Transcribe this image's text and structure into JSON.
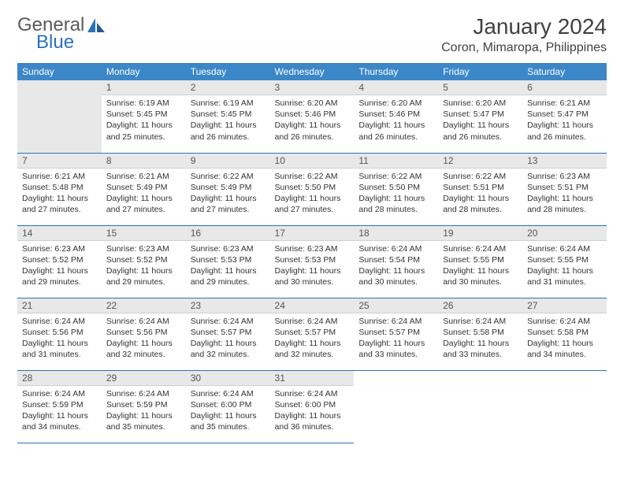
{
  "logo": {
    "text1": "General",
    "text2": "Blue",
    "color1": "#5a5a5a",
    "color2": "#2a71b8"
  },
  "title": "January 2024",
  "location": "Coron, Mimaropa, Philippines",
  "colors": {
    "header_bg": "#3b87c8",
    "header_fg": "#ffffff",
    "daynum_bg": "#e8e8e8",
    "border": "#2a71b8",
    "text": "#333333"
  },
  "weekdays": [
    "Sunday",
    "Monday",
    "Tuesday",
    "Wednesday",
    "Thursday",
    "Friday",
    "Saturday"
  ],
  "start_offset": 1,
  "days": [
    {
      "n": 1,
      "sunrise": "6:19 AM",
      "sunset": "5:45 PM",
      "daylight": "11 hours and 25 minutes."
    },
    {
      "n": 2,
      "sunrise": "6:19 AM",
      "sunset": "5:45 PM",
      "daylight": "11 hours and 26 minutes."
    },
    {
      "n": 3,
      "sunrise": "6:20 AM",
      "sunset": "5:46 PM",
      "daylight": "11 hours and 26 minutes."
    },
    {
      "n": 4,
      "sunrise": "6:20 AM",
      "sunset": "5:46 PM",
      "daylight": "11 hours and 26 minutes."
    },
    {
      "n": 5,
      "sunrise": "6:20 AM",
      "sunset": "5:47 PM",
      "daylight": "11 hours and 26 minutes."
    },
    {
      "n": 6,
      "sunrise": "6:21 AM",
      "sunset": "5:47 PM",
      "daylight": "11 hours and 26 minutes."
    },
    {
      "n": 7,
      "sunrise": "6:21 AM",
      "sunset": "5:48 PM",
      "daylight": "11 hours and 27 minutes."
    },
    {
      "n": 8,
      "sunrise": "6:21 AM",
      "sunset": "5:49 PM",
      "daylight": "11 hours and 27 minutes."
    },
    {
      "n": 9,
      "sunrise": "6:22 AM",
      "sunset": "5:49 PM",
      "daylight": "11 hours and 27 minutes."
    },
    {
      "n": 10,
      "sunrise": "6:22 AM",
      "sunset": "5:50 PM",
      "daylight": "11 hours and 27 minutes."
    },
    {
      "n": 11,
      "sunrise": "6:22 AM",
      "sunset": "5:50 PM",
      "daylight": "11 hours and 28 minutes."
    },
    {
      "n": 12,
      "sunrise": "6:22 AM",
      "sunset": "5:51 PM",
      "daylight": "11 hours and 28 minutes."
    },
    {
      "n": 13,
      "sunrise": "6:23 AM",
      "sunset": "5:51 PM",
      "daylight": "11 hours and 28 minutes."
    },
    {
      "n": 14,
      "sunrise": "6:23 AM",
      "sunset": "5:52 PM",
      "daylight": "11 hours and 29 minutes."
    },
    {
      "n": 15,
      "sunrise": "6:23 AM",
      "sunset": "5:52 PM",
      "daylight": "11 hours and 29 minutes."
    },
    {
      "n": 16,
      "sunrise": "6:23 AM",
      "sunset": "5:53 PM",
      "daylight": "11 hours and 29 minutes."
    },
    {
      "n": 17,
      "sunrise": "6:23 AM",
      "sunset": "5:53 PM",
      "daylight": "11 hours and 30 minutes."
    },
    {
      "n": 18,
      "sunrise": "6:24 AM",
      "sunset": "5:54 PM",
      "daylight": "11 hours and 30 minutes."
    },
    {
      "n": 19,
      "sunrise": "6:24 AM",
      "sunset": "5:55 PM",
      "daylight": "11 hours and 30 minutes."
    },
    {
      "n": 20,
      "sunrise": "6:24 AM",
      "sunset": "5:55 PM",
      "daylight": "11 hours and 31 minutes."
    },
    {
      "n": 21,
      "sunrise": "6:24 AM",
      "sunset": "5:56 PM",
      "daylight": "11 hours and 31 minutes."
    },
    {
      "n": 22,
      "sunrise": "6:24 AM",
      "sunset": "5:56 PM",
      "daylight": "11 hours and 32 minutes."
    },
    {
      "n": 23,
      "sunrise": "6:24 AM",
      "sunset": "5:57 PM",
      "daylight": "11 hours and 32 minutes."
    },
    {
      "n": 24,
      "sunrise": "6:24 AM",
      "sunset": "5:57 PM",
      "daylight": "11 hours and 32 minutes."
    },
    {
      "n": 25,
      "sunrise": "6:24 AM",
      "sunset": "5:57 PM",
      "daylight": "11 hours and 33 minutes."
    },
    {
      "n": 26,
      "sunrise": "6:24 AM",
      "sunset": "5:58 PM",
      "daylight": "11 hours and 33 minutes."
    },
    {
      "n": 27,
      "sunrise": "6:24 AM",
      "sunset": "5:58 PM",
      "daylight": "11 hours and 34 minutes."
    },
    {
      "n": 28,
      "sunrise": "6:24 AM",
      "sunset": "5:59 PM",
      "daylight": "11 hours and 34 minutes."
    },
    {
      "n": 29,
      "sunrise": "6:24 AM",
      "sunset": "5:59 PM",
      "daylight": "11 hours and 35 minutes."
    },
    {
      "n": 30,
      "sunrise": "6:24 AM",
      "sunset": "6:00 PM",
      "daylight": "11 hours and 35 minutes."
    },
    {
      "n": 31,
      "sunrise": "6:24 AM",
      "sunset": "6:00 PM",
      "daylight": "11 hours and 36 minutes."
    }
  ],
  "labels": {
    "sunrise": "Sunrise:",
    "sunset": "Sunset:",
    "daylight": "Daylight:"
  }
}
